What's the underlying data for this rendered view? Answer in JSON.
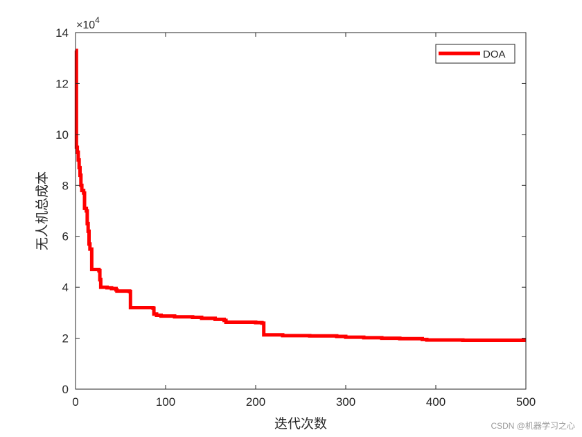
{
  "chart_data": {
    "type": "line",
    "xlabel": "迭代次数",
    "ylabel": "无人机总成本",
    "xlim": [
      0,
      500
    ],
    "ylim": [
      0,
      140000
    ],
    "x_ticks": [
      0,
      100,
      200,
      300,
      400,
      500
    ],
    "y_ticks": [
      0,
      2,
      4,
      6,
      8,
      10,
      12,
      14
    ],
    "y_exponent_label": "×10",
    "y_exponent_power": "4",
    "y_multiplier": 10000,
    "grid": false,
    "legend_position": "top-right",
    "series": [
      {
        "name": "DOA",
        "color": "#ff0000",
        "step": true,
        "points": [
          [
            0,
            133000
          ],
          [
            1,
            95000
          ],
          [
            2,
            93000
          ],
          [
            3,
            90000
          ],
          [
            4,
            87000
          ],
          [
            5,
            84000
          ],
          [
            6,
            80000
          ],
          [
            7,
            78000
          ],
          [
            9,
            77000
          ],
          [
            10,
            71000
          ],
          [
            12,
            70000
          ],
          [
            13,
            65000
          ],
          [
            14,
            62000
          ],
          [
            15,
            57000
          ],
          [
            16,
            55000
          ],
          [
            18,
            47000
          ],
          [
            26,
            46500
          ],
          [
            27,
            43000
          ],
          [
            28,
            40000
          ],
          [
            35,
            39800
          ],
          [
            40,
            39500
          ],
          [
            45,
            39000
          ],
          [
            46,
            38500
          ],
          [
            60,
            38300
          ],
          [
            61,
            32000
          ],
          [
            86,
            31800
          ],
          [
            87,
            29500
          ],
          [
            90,
            29000
          ],
          [
            95,
            28700
          ],
          [
            110,
            28400
          ],
          [
            130,
            28200
          ],
          [
            140,
            27800
          ],
          [
            155,
            27400
          ],
          [
            165,
            27000
          ],
          [
            167,
            26300
          ],
          [
            200,
            26100
          ],
          [
            207,
            25900
          ],
          [
            209,
            21300
          ],
          [
            230,
            21000
          ],
          [
            260,
            20900
          ],
          [
            290,
            20700
          ],
          [
            300,
            20400
          ],
          [
            320,
            20200
          ],
          [
            340,
            20000
          ],
          [
            360,
            19800
          ],
          [
            385,
            19500
          ],
          [
            390,
            19300
          ],
          [
            430,
            19200
          ],
          [
            500,
            19200
          ]
        ]
      }
    ]
  },
  "watermark": "CSDN @机器学习之心"
}
